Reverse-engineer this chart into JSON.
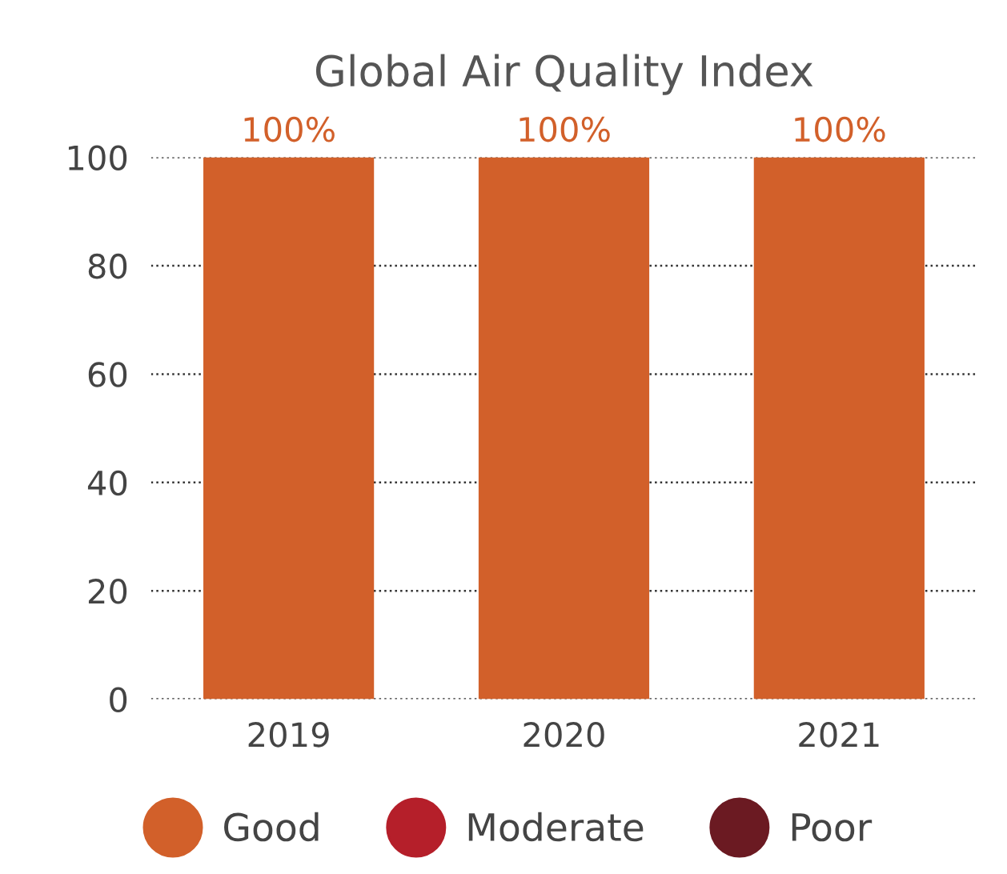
{
  "chart_data": {
    "type": "bar",
    "title": "Global Air Quality Index",
    "stacked": true,
    "categories": [
      "2019",
      "2020",
      "2021"
    ],
    "series": [
      {
        "name": "Good",
        "color": "#d2602a",
        "values": [
          100,
          100,
          100
        ],
        "value_labels": [
          "100%",
          "100%",
          "100%"
        ]
      },
      {
        "name": "Moderate",
        "color": "#b51f2a",
        "values": [
          0,
          0,
          0
        ]
      },
      {
        "name": "Poor",
        "color": "#6b1a22",
        "values": [
          0,
          0,
          0
        ]
      }
    ],
    "ylim": [
      0,
      100
    ],
    "yticks": [
      0,
      20,
      40,
      60,
      80,
      100
    ],
    "grid": "y",
    "legend": "bottom"
  }
}
